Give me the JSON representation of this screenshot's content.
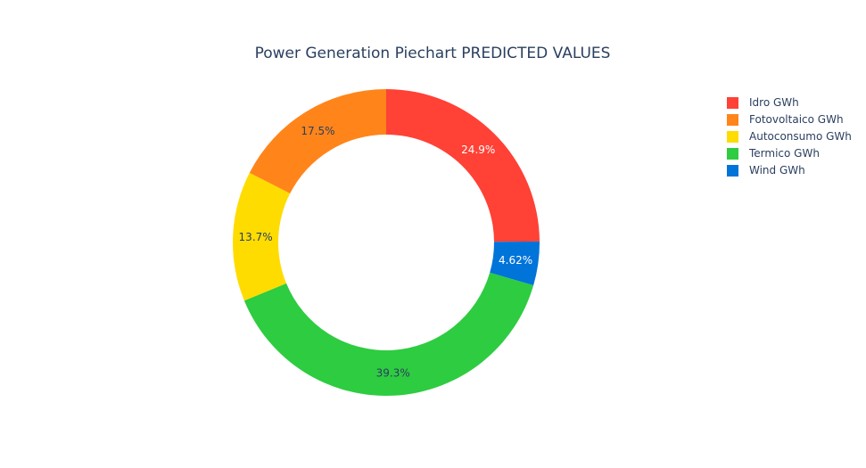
{
  "chart_data": {
    "type": "pie",
    "title": "Power Generation Piechart PREDICTED VALUES",
    "hole": true,
    "direction": "clockwise",
    "legend_position": "right",
    "slices": [
      {
        "label": "Idro GWh",
        "percent": 24.9,
        "display": "24.9%",
        "color": "#ff4136",
        "text_color": "#ffffff"
      },
      {
        "label": "Wind GWh",
        "percent": 4.62,
        "display": "4.62%",
        "color": "#0074d9",
        "text_color": "#ffffff"
      },
      {
        "label": "Termico GWh",
        "percent": 39.3,
        "display": "39.3%",
        "color": "#2ecc40",
        "text_color": "#2a3f5f"
      },
      {
        "label": "Autoconsumo GWh",
        "percent": 13.7,
        "display": "13.7%",
        "color": "#ffdc00",
        "text_color": "#2a3f5f"
      },
      {
        "label": "Fotovoltaico GWh",
        "percent": 17.5,
        "display": "17.5%",
        "color": "#ff851b",
        "text_color": "#2a3f5f"
      }
    ],
    "legend_order": [
      "Idro GWh",
      "Fotovoltaico GWh",
      "Autoconsumo GWh",
      "Termico GWh",
      "Wind GWh"
    ]
  }
}
